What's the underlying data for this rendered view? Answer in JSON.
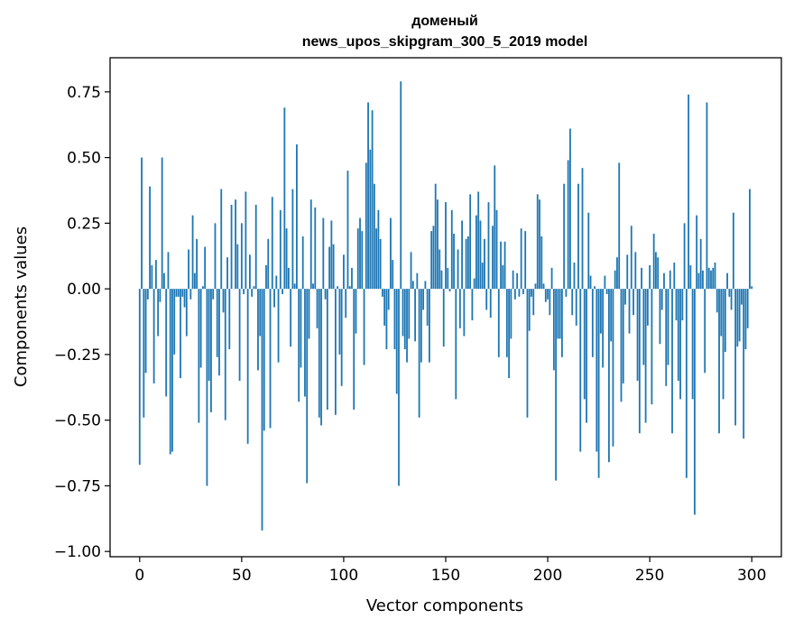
{
  "chart_data": {
    "type": "bar",
    "title": "доменый",
    "subtitle": "news_upos_skipgram_300_5_2019 model",
    "xlabel": "Vector components",
    "ylabel": "Components values",
    "xlim": [
      -14.5,
      314.5
    ],
    "ylim": [
      -1.02,
      0.88
    ],
    "xticks": [
      0,
      50,
      100,
      150,
      200,
      250,
      300
    ],
    "yticks": [
      -1.0,
      -0.75,
      -0.5,
      -0.25,
      0.0,
      0.25,
      0.5,
      0.75
    ],
    "ytick_labels": [
      "−1.00",
      "−0.75",
      "−0.50",
      "−0.25",
      "0.00",
      "0.25",
      "0.50",
      "0.75"
    ],
    "bar_color": "#1f77b4",
    "values": [
      -0.67,
      0.5,
      -0.49,
      -0.32,
      -0.04,
      0.39,
      0.09,
      -0.36,
      0.11,
      -0.18,
      -0.05,
      0.5,
      0.06,
      -0.41,
      0.14,
      -0.63,
      -0.62,
      -0.25,
      -0.03,
      -0.03,
      -0.34,
      -0.03,
      -0.07,
      -0.18,
      0.15,
      -0.04,
      0.28,
      0.06,
      0.19,
      -0.51,
      -0.3,
      0.01,
      0.16,
      -0.75,
      -0.35,
      -0.47,
      -0.04,
      0.25,
      -0.26,
      -0.33,
      0.38,
      -0.09,
      -0.5,
      0.12,
      -0.23,
      0.32,
      0.0,
      0.34,
      0.17,
      -0.35,
      0.25,
      -0.02,
      0.37,
      -0.59,
      0.13,
      -0.03,
      0.01,
      0.32,
      -0.31,
      -0.18,
      -0.92,
      -0.54,
      0.09,
      0.19,
      -0.53,
      0.35,
      -0.07,
      0.05,
      -0.28,
      0.3,
      -0.02,
      0.69,
      0.23,
      0.08,
      -0.22,
      0.38,
      0.02,
      0.55,
      -0.43,
      -0.3,
      0.2,
      -0.41,
      -0.74,
      -0.19,
      0.34,
      0.02,
      0.31,
      -0.15,
      -0.49,
      -0.52,
      0.27,
      -0.04,
      -0.46,
      0.16,
      0.26,
      0.17,
      -0.48,
      0.01,
      -0.25,
      -0.37,
      0.13,
      -0.11,
      0.45,
      0.01,
      0.08,
      -0.46,
      -0.17,
      0.23,
      0.27,
      0.22,
      -0.29,
      0.48,
      0.71,
      0.53,
      0.68,
      0.4,
      0.23,
      0.3,
      0.19,
      -0.03,
      -0.14,
      -0.23,
      -0.08,
      0.27,
      0.11,
      -0.23,
      -0.4,
      -0.75,
      0.79,
      -0.18,
      -0.23,
      -0.28,
      -0.19,
      0.14,
      0.03,
      -0.2,
      0.06,
      -0.49,
      -0.28,
      -0.08,
      0.03,
      -0.14,
      -0.28,
      0.22,
      0.24,
      0.4,
      0.34,
      0.15,
      0.07,
      -0.22,
      0.33,
      0.08,
      -0.01,
      0.3,
      0.21,
      -0.42,
      0.15,
      -0.15,
      0.26,
      -0.18,
      0.19,
      0.2,
      0.36,
      -0.12,
      0.04,
      0.28,
      0.37,
      0.26,
      0.1,
      0.19,
      -0.08,
      0.33,
      -0.11,
      0.24,
      0.47,
      0.3,
      -0.26,
      0.18,
      0.09,
      0.18,
      -0.26,
      -0.34,
      -0.19,
      0.07,
      -0.04,
      0.06,
      -0.03,
      0.23,
      -0.02,
      0.22,
      -0.49,
      -0.16,
      -0.03,
      -0.1,
      0.02,
      0.36,
      0.34,
      0.2,
      0.02,
      -0.05,
      -0.04,
      -0.1,
      0.08,
      -0.31,
      -0.73,
      -0.19,
      -0.19,
      -0.26,
      0.4,
      -0.03,
      0.49,
      0.61,
      -0.1,
      0.1,
      -0.14,
      0.4,
      -0.62,
      0.46,
      -0.42,
      -0.51,
      0.29,
      0.05,
      -0.26,
      0.01,
      -0.62,
      -0.72,
      -0.17,
      -0.3,
      0.05,
      -0.02,
      -0.66,
      -0.2,
      -0.6,
      0.07,
      0.12,
      0.48,
      -0.43,
      -0.36,
      -0.06,
      0.13,
      -0.17,
      0.24,
      -0.1,
      0.14,
      -0.35,
      -0.55,
      0.08,
      -0.29,
      -0.51,
      -0.14,
      0.09,
      -0.44,
      0.21,
      0.14,
      0.12,
      -0.21,
      -0.08,
      0.06,
      -0.37,
      -0.29,
      0.07,
      -0.55,
      0.1,
      -0.12,
      -0.35,
      -0.42,
      -0.12,
      0.25,
      -0.72,
      0.74,
      0.09,
      -0.42,
      -0.86,
      0.28,
      0.06,
      0.19,
      0.07,
      -0.32,
      0.71,
      0.08,
      0.07,
      0.08,
      0.1,
      -0.09,
      -0.55,
      -0.18,
      -0.42,
      -0.24,
      0.06,
      -0.03,
      -0.08,
      0.29,
      -0.52,
      -0.22,
      -0.2,
      -0.06,
      -0.57,
      -0.23,
      -0.15,
      0.38,
      0.01
    ]
  }
}
